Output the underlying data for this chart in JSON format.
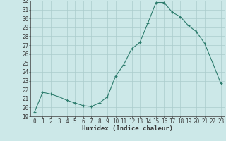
{
  "x": [
    0,
    1,
    2,
    3,
    4,
    5,
    6,
    7,
    8,
    9,
    10,
    11,
    12,
    13,
    14,
    15,
    16,
    17,
    18,
    19,
    20,
    21,
    22,
    23
  ],
  "y": [
    19.5,
    21.7,
    21.5,
    21.2,
    20.8,
    20.5,
    20.2,
    20.1,
    20.5,
    21.2,
    23.5,
    24.8,
    26.6,
    27.3,
    29.5,
    31.8,
    31.8,
    30.7,
    30.2,
    29.2,
    28.5,
    27.2,
    25.0,
    22.7
  ],
  "xlabel": "Humidex (Indice chaleur)",
  "ylim": [
    19,
    32
  ],
  "xlim": [
    -0.5,
    23.5
  ],
  "yticks": [
    19,
    20,
    21,
    22,
    23,
    24,
    25,
    26,
    27,
    28,
    29,
    30,
    31,
    32
  ],
  "xticks": [
    0,
    1,
    2,
    3,
    4,
    5,
    6,
    7,
    8,
    9,
    10,
    11,
    12,
    13,
    14,
    15,
    16,
    17,
    18,
    19,
    20,
    21,
    22,
    23
  ],
  "line_color": "#2e7d6e",
  "marker": "+",
  "bg_color": "#cce8e8",
  "grid_color": "#aacccc",
  "tick_color": "#3a3a3a",
  "label_fontsize": 6.5,
  "tick_fontsize": 5.5
}
